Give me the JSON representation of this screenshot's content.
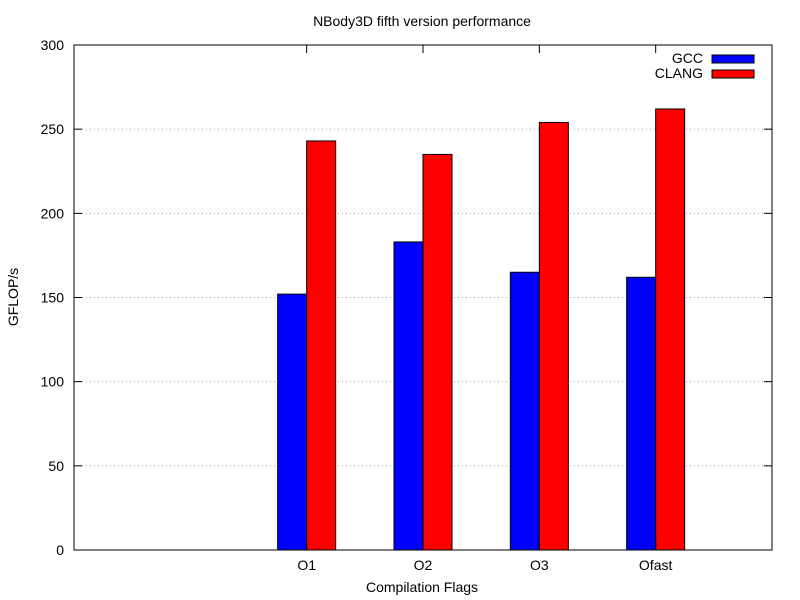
{
  "chart_data": {
    "type": "bar",
    "title": "NBody3D fifth version performance",
    "xlabel": "Compilation Flags",
    "ylabel": "GFLOP/s",
    "ylim": [
      0,
      300
    ],
    "yticks": [
      0,
      50,
      100,
      150,
      200,
      250,
      300
    ],
    "categories": [
      "O1",
      "O2",
      "O3",
      "Ofast"
    ],
    "series": [
      {
        "name": "GCC",
        "color": "#0000ff",
        "values": [
          152,
          183,
          165,
          162
        ]
      },
      {
        "name": "CLANG",
        "color": "#ff0000",
        "values": [
          243,
          235,
          254,
          262
        ]
      }
    ],
    "grid": "horizontal dotted",
    "legend_position": "top-right"
  }
}
